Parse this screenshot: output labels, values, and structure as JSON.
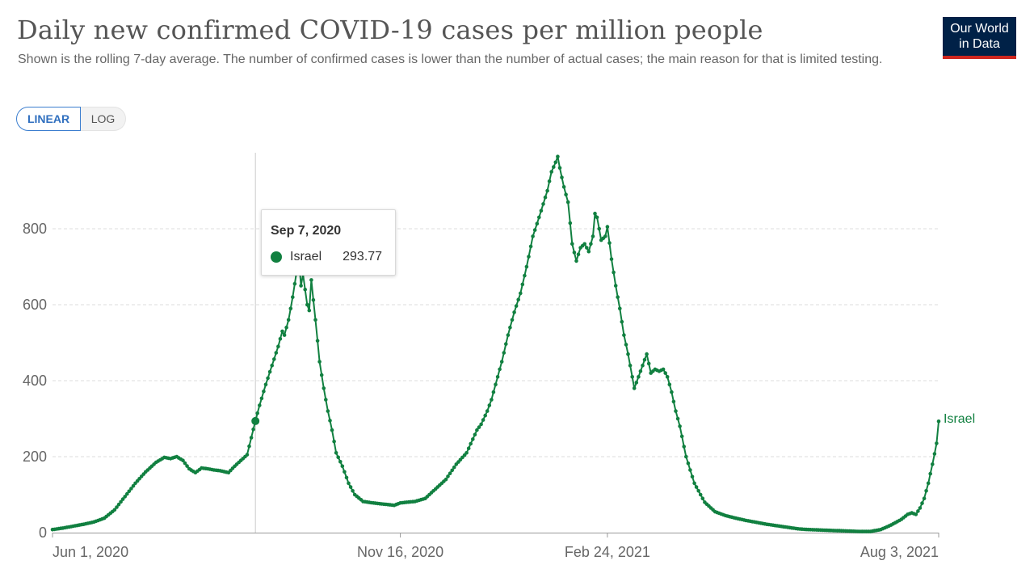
{
  "header": {
    "title": "Daily new confirmed COVID-19 cases per million people",
    "subtitle": "Shown is the rolling 7-day average. The number of confirmed cases is lower than the number of actual cases; the main reason for that is limited testing.",
    "logo_line1": "Our World",
    "logo_line2": "in Data"
  },
  "scale_toggle": {
    "linear_label": "LINEAR",
    "log_label": "LOG",
    "selected": "LINEAR"
  },
  "tooltip": {
    "date": "Sep 7, 2020",
    "series": "Israel",
    "value": "293.77"
  },
  "colors": {
    "series": "#118040",
    "grid": "#dddddd",
    "axis": "#999999",
    "logo_bg": "#002147",
    "logo_accent": "#ce261e",
    "toggle_active": "#3b7ecf"
  },
  "chart_data": {
    "type": "line",
    "title": "Daily new confirmed COVID-19 cases per million people",
    "xlabel": "",
    "ylabel": "",
    "x_start": "Jun 1, 2020",
    "x_end": "Aug 3, 2021",
    "x_range_days": [
      0,
      428
    ],
    "ylim": [
      0,
      1000
    ],
    "y_ticks": [
      0,
      200,
      400,
      600,
      800
    ],
    "x_ticks": [
      {
        "label": "Jun 1, 2020",
        "day": 0
      },
      {
        "label": "Nov 16, 2020",
        "day": 168
      },
      {
        "label": "Feb 24, 2021",
        "day": 268
      },
      {
        "label": "Aug 3, 2021",
        "day": 428
      }
    ],
    "grid": "horizontal-dashed",
    "hover_day": 98,
    "series": [
      {
        "name": "Israel",
        "label": "Israel",
        "color": "#118040",
        "points": [
          [
            0,
            8
          ],
          [
            5,
            12
          ],
          [
            10,
            17
          ],
          [
            15,
            22
          ],
          [
            20,
            28
          ],
          [
            25,
            38
          ],
          [
            30,
            60
          ],
          [
            35,
            95
          ],
          [
            40,
            130
          ],
          [
            45,
            160
          ],
          [
            50,
            185
          ],
          [
            54,
            198
          ],
          [
            57,
            195
          ],
          [
            60,
            200
          ],
          [
            63,
            190
          ],
          [
            66,
            168
          ],
          [
            69,
            158
          ],
          [
            72,
            170
          ],
          [
            75,
            168
          ],
          [
            78,
            165
          ],
          [
            81,
            163
          ],
          [
            85,
            158
          ],
          [
            88,
            175
          ],
          [
            91,
            190
          ],
          [
            94,
            205
          ],
          [
            96,
            250
          ],
          [
            98,
            293.77
          ],
          [
            100,
            335
          ],
          [
            103,
            390
          ],
          [
            106,
            440
          ],
          [
            109,
            490
          ],
          [
            111,
            530
          ],
          [
            112,
            520
          ],
          [
            114,
            560
          ],
          [
            116,
            620
          ],
          [
            118,
            690
          ],
          [
            119,
            720
          ],
          [
            120,
            650
          ],
          [
            121,
            680
          ],
          [
            122,
            640
          ],
          [
            123,
            600
          ],
          [
            124,
            585
          ],
          [
            125,
            665
          ],
          [
            127,
            560
          ],
          [
            129,
            450
          ],
          [
            131,
            380
          ],
          [
            133,
            320
          ],
          [
            135,
            270
          ],
          [
            137,
            210
          ],
          [
            140,
            175
          ],
          [
            143,
            130
          ],
          [
            146,
            100
          ],
          [
            150,
            82
          ],
          [
            155,
            78
          ],
          [
            160,
            75
          ],
          [
            165,
            72
          ],
          [
            168,
            78
          ],
          [
            171,
            80
          ],
          [
            175,
            82
          ],
          [
            180,
            90
          ],
          [
            185,
            115
          ],
          [
            190,
            140
          ],
          [
            195,
            180
          ],
          [
            200,
            210
          ],
          [
            205,
            270
          ],
          [
            207,
            285
          ],
          [
            210,
            320
          ],
          [
            212,
            350
          ],
          [
            214,
            390
          ],
          [
            217,
            450
          ],
          [
            220,
            520
          ],
          [
            223,
            580
          ],
          [
            226,
            630
          ],
          [
            229,
            700
          ],
          [
            232,
            780
          ],
          [
            235,
            830
          ],
          [
            237,
            865
          ],
          [
            239,
            900
          ],
          [
            241,
            950
          ],
          [
            243,
            975
          ],
          [
            244,
            990
          ],
          [
            245,
            960
          ],
          [
            247,
            910
          ],
          [
            249,
            870
          ],
          [
            251,
            760
          ],
          [
            253,
            715
          ],
          [
            255,
            750
          ],
          [
            257,
            760
          ],
          [
            259,
            740
          ],
          [
            261,
            780
          ],
          [
            262,
            840
          ],
          [
            263,
            830
          ],
          [
            265,
            770
          ],
          [
            267,
            780
          ],
          [
            268,
            805
          ],
          [
            270,
            720
          ],
          [
            272,
            650
          ],
          [
            274,
            590
          ],
          [
            276,
            520
          ],
          [
            278,
            470
          ],
          [
            280,
            410
          ],
          [
            281,
            380
          ],
          [
            283,
            410
          ],
          [
            285,
            440
          ],
          [
            287,
            470
          ],
          [
            289,
            420
          ],
          [
            291,
            430
          ],
          [
            293,
            425
          ],
          [
            295,
            430
          ],
          [
            297,
            410
          ],
          [
            299,
            370
          ],
          [
            301,
            320
          ],
          [
            303,
            280
          ],
          [
            306,
            200
          ],
          [
            310,
            130
          ],
          [
            315,
            80
          ],
          [
            320,
            55
          ],
          [
            325,
            45
          ],
          [
            330,
            38
          ],
          [
            335,
            32
          ],
          [
            340,
            27
          ],
          [
            345,
            22
          ],
          [
            350,
            18
          ],
          [
            355,
            14
          ],
          [
            360,
            10
          ],
          [
            365,
            8
          ],
          [
            370,
            7
          ],
          [
            375,
            6
          ],
          [
            380,
            5
          ],
          [
            385,
            4
          ],
          [
            390,
            3
          ],
          [
            395,
            3
          ],
          [
            400,
            8
          ],
          [
            405,
            20
          ],
          [
            410,
            35
          ],
          [
            413,
            48
          ],
          [
            415,
            52
          ],
          [
            417,
            48
          ],
          [
            419,
            65
          ],
          [
            421,
            90
          ],
          [
            423,
            130
          ],
          [
            425,
            180
          ],
          [
            427,
            235
          ],
          [
            428,
            293
          ]
        ]
      }
    ]
  }
}
